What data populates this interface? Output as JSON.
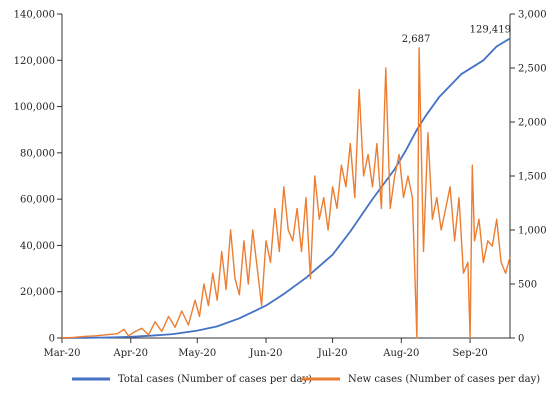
{
  "chart_data": {
    "type": "line",
    "x_labels": [
      "Mar-20",
      "Apr-20",
      "May-20",
      "Jun-20",
      "Jul-20",
      "Aug-20",
      "Sep-20"
    ],
    "x_domain_days": [
      0,
      202
    ],
    "x_label_days": [
      0,
      31,
      61,
      92,
      122,
      153,
      184
    ],
    "ylim_left": [
      0,
      140000
    ],
    "yticks_left": [
      0,
      20000,
      40000,
      60000,
      80000,
      100000,
      120000,
      140000
    ],
    "ytick_labels_left": [
      "0",
      "20,000",
      "40,000",
      "60,000",
      "80,000",
      "100,000",
      "120,000",
      "140,000"
    ],
    "ylim_right": [
      0,
      3000
    ],
    "yticks_right": [
      0,
      500,
      1000,
      1500,
      2000,
      2500,
      3000
    ],
    "ytick_labels_right": [
      "0",
      "500",
      "1,000",
      "1,500",
      "2,000",
      "2,500",
      "3,000"
    ],
    "grid": false,
    "legend_position": "bottom",
    "annotations": [
      {
        "series": "new",
        "text": "2,687",
        "x": 161,
        "y": 2687
      },
      {
        "series": "total",
        "text": "129,419",
        "x": 202,
        "y": 129419
      }
    ],
    "series": [
      {
        "name": "Total cases (Number of cases per day)",
        "axis": "left",
        "color": "#4472C4",
        "points": [
          [
            0,
            0
          ],
          [
            10,
            80
          ],
          [
            20,
            200
          ],
          [
            31,
            500
          ],
          [
            40,
            1000
          ],
          [
            50,
            1700
          ],
          [
            61,
            3200
          ],
          [
            70,
            5000
          ],
          [
            80,
            8500
          ],
          [
            92,
            14000
          ],
          [
            100,
            19000
          ],
          [
            110,
            26000
          ],
          [
            122,
            36000
          ],
          [
            130,
            46000
          ],
          [
            140,
            60000
          ],
          [
            150,
            73000
          ],
          [
            155,
            81000
          ],
          [
            160,
            90000
          ],
          [
            164,
            96000
          ],
          [
            170,
            104000
          ],
          [
            180,
            114000
          ],
          [
            190,
            120000
          ],
          [
            196,
            126000
          ],
          [
            202,
            129419
          ]
        ]
      },
      {
        "name": "New cases (Number of cases per day)",
        "axis": "right",
        "color": "#ED7D31",
        "points": [
          [
            0,
            0
          ],
          [
            5,
            5
          ],
          [
            10,
            15
          ],
          [
            15,
            20
          ],
          [
            20,
            30
          ],
          [
            25,
            40
          ],
          [
            28,
            80
          ],
          [
            30,
            20
          ],
          [
            33,
            60
          ],
          [
            36,
            90
          ],
          [
            39,
            30
          ],
          [
            42,
            150
          ],
          [
            45,
            60
          ],
          [
            48,
            200
          ],
          [
            51,
            100
          ],
          [
            54,
            250
          ],
          [
            57,
            120
          ],
          [
            60,
            350
          ],
          [
            62,
            200
          ],
          [
            64,
            500
          ],
          [
            66,
            300
          ],
          [
            68,
            600
          ],
          [
            70,
            350
          ],
          [
            72,
            800
          ],
          [
            74,
            450
          ],
          [
            76,
            1000
          ],
          [
            78,
            550
          ],
          [
            80,
            400
          ],
          [
            82,
            900
          ],
          [
            84,
            500
          ],
          [
            86,
            1000
          ],
          [
            88,
            650
          ],
          [
            90,
            300
          ],
          [
            92,
            900
          ],
          [
            94,
            700
          ],
          [
            96,
            1200
          ],
          [
            98,
            800
          ],
          [
            100,
            1400
          ],
          [
            102,
            1000
          ],
          [
            104,
            900
          ],
          [
            106,
            1200
          ],
          [
            108,
            800
          ],
          [
            110,
            1300
          ],
          [
            112,
            550
          ],
          [
            114,
            1500
          ],
          [
            116,
            1100
          ],
          [
            118,
            1300
          ],
          [
            120,
            1000
          ],
          [
            122,
            1400
          ],
          [
            124,
            1200
          ],
          [
            126,
            1600
          ],
          [
            128,
            1400
          ],
          [
            130,
            1800
          ],
          [
            132,
            1300
          ],
          [
            134,
            2300
          ],
          [
            136,
            1500
          ],
          [
            138,
            1700
          ],
          [
            140,
            1400
          ],
          [
            142,
            1800
          ],
          [
            144,
            1200
          ],
          [
            146,
            2500
          ],
          [
            148,
            1200
          ],
          [
            150,
            1500
          ],
          [
            152,
            1700
          ],
          [
            154,
            1300
          ],
          [
            156,
            1500
          ],
          [
            158,
            1300
          ],
          [
            160,
            0
          ],
          [
            161,
            2687
          ],
          [
            163,
            800
          ],
          [
            165,
            1900
          ],
          [
            167,
            1100
          ],
          [
            169,
            1300
          ],
          [
            171,
            1000
          ],
          [
            173,
            1200
          ],
          [
            175,
            1400
          ],
          [
            177,
            900
          ],
          [
            179,
            1300
          ],
          [
            181,
            600
          ],
          [
            183,
            700
          ],
          [
            184,
            0
          ],
          [
            185,
            1600
          ],
          [
            186,
            900
          ],
          [
            188,
            1100
          ],
          [
            190,
            700
          ],
          [
            192,
            900
          ],
          [
            194,
            850
          ],
          [
            196,
            1100
          ],
          [
            198,
            700
          ],
          [
            200,
            600
          ],
          [
            202,
            750
          ]
        ]
      }
    ]
  }
}
